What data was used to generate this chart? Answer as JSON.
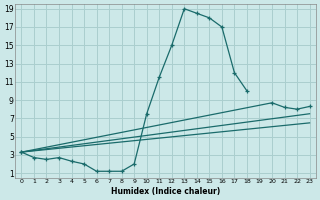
{
  "xlabel": "Humidex (Indice chaleur)",
  "bg_color": "#cce8e8",
  "grid_color": "#aacece",
  "line_color": "#1a6b6b",
  "xlim": [
    -0.5,
    23.5
  ],
  "ylim": [
    0.5,
    19.5
  ],
  "xticks": [
    0,
    1,
    2,
    3,
    4,
    5,
    6,
    7,
    8,
    9,
    10,
    11,
    12,
    13,
    14,
    15,
    16,
    17,
    18,
    19,
    20,
    21,
    22,
    23
  ],
  "yticks": [
    1,
    3,
    5,
    7,
    9,
    11,
    13,
    15,
    17,
    19
  ],
  "line1_x": [
    0,
    1,
    2,
    3,
    4,
    5,
    6,
    7,
    8,
    9,
    10,
    11,
    12,
    13,
    14,
    15,
    16,
    17,
    18
  ],
  "line1_y": [
    3.3,
    2.7,
    2.5,
    2.7,
    2.3,
    2.0,
    1.2,
    1.2,
    1.2,
    2.0,
    7.5,
    11.5,
    15.0,
    19.0,
    18.5,
    18.0,
    17.0,
    12.0,
    10.0
  ],
  "line2_x": [
    0,
    23
  ],
  "line2_y": [
    3.3,
    6.5
  ],
  "line3_x": [
    0,
    23
  ],
  "line3_y": [
    3.3,
    7.5
  ],
  "line4_x": [
    0,
    20,
    21,
    22,
    23
  ],
  "line4_y": [
    3.3,
    8.7,
    8.2,
    8.0,
    8.3
  ]
}
